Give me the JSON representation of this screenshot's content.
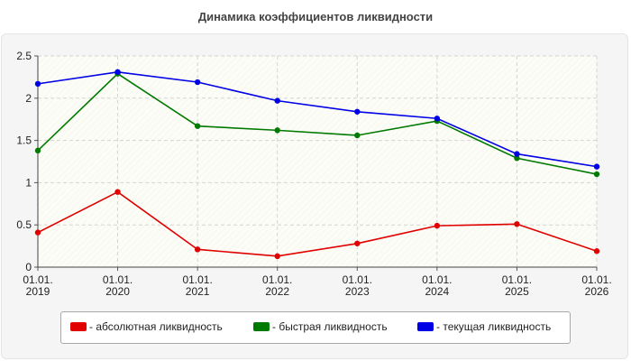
{
  "chart_data": {
    "type": "line",
    "title": "Динамика коэффициентов ликвидности",
    "categories": [
      "01.01.\n2019",
      "01.01.\n2020",
      "01.01.\n2021",
      "01.01.\n2022",
      "01.01.\n2023",
      "01.01.\n2024",
      "01.01.\n2025",
      "01.01.\n2026"
    ],
    "ylim": [
      0,
      2.5
    ],
    "yticks": [
      "0",
      "0.5",
      "1",
      "1.5",
      "2",
      "2.5"
    ],
    "grid": true,
    "legend_position": "bottom",
    "series": [
      {
        "name": "- абсолютная ликвидность",
        "color": "#e00000",
        "values": [
          0.41,
          0.89,
          0.21,
          0.13,
          0.28,
          0.49,
          0.51,
          0.19
        ]
      },
      {
        "name": "- быстрая ликвидность",
        "color": "#007a00",
        "values": [
          1.38,
          2.29,
          1.67,
          1.62,
          1.56,
          1.73,
          1.29,
          1.1
        ]
      },
      {
        "name": "- текущая ликвидность",
        "color": "#0000e6",
        "values": [
          2.17,
          2.31,
          2.19,
          1.97,
          1.84,
          1.76,
          1.34,
          1.19
        ]
      }
    ]
  }
}
